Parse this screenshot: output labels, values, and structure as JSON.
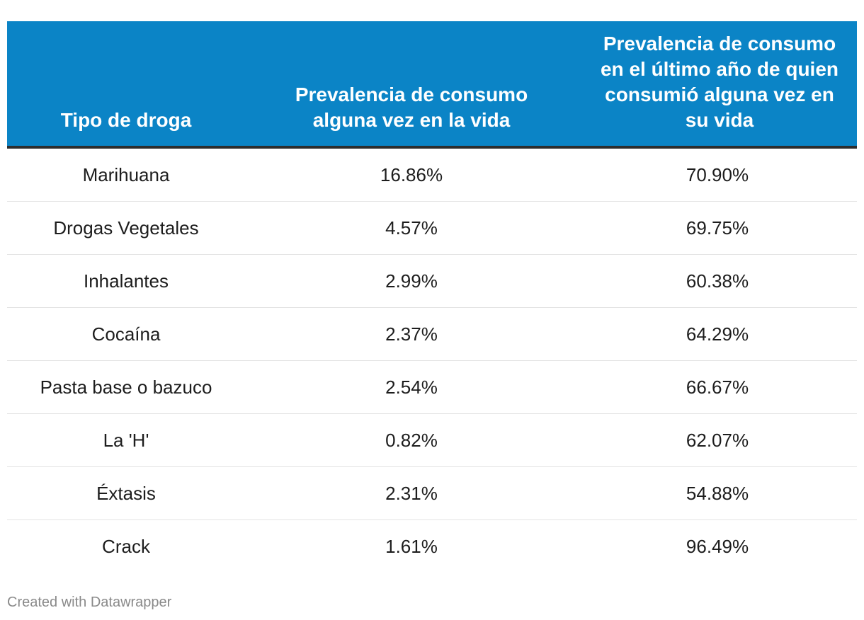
{
  "chart_data": {
    "type": "table",
    "columns": [
      "Tipo de droga",
      "Prevalencia de consumo alguna vez en la vida",
      "Prevalencia de consumo en el último año de quien consumió alguna vez en su vida"
    ],
    "rows": [
      [
        "Marihuana",
        "16.86%",
        "70.90%"
      ],
      [
        "Drogas Vegetales",
        "4.57%",
        "69.75%"
      ],
      [
        "Inhalantes",
        "2.99%",
        "60.38%"
      ],
      [
        "Cocaína",
        "2.37%",
        "64.29%"
      ],
      [
        "Pasta base o bazuco",
        "2.54%",
        "66.67%"
      ],
      [
        "La 'H'",
        "0.82%",
        "62.07%"
      ],
      [
        "Éxtasis",
        "2.31%",
        "54.88%"
      ],
      [
        "Crack",
        "1.61%",
        "96.49%"
      ]
    ]
  },
  "footer": {
    "credit": "Created with Datawrapper"
  },
  "colors": {
    "header_bg": "#0b84c6",
    "header_text": "#ffffff",
    "header_rule": "#2d2d2d",
    "row_divider": "#e3e3e3",
    "footer_text": "#8a8a8a"
  }
}
